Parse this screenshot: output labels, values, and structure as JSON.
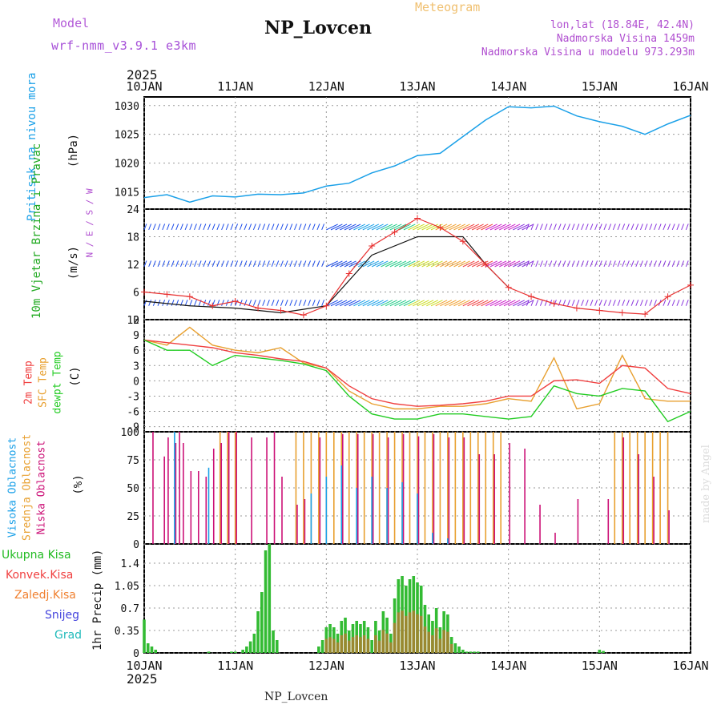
{
  "header": {
    "model_label": "Model",
    "model_name": "wrf-nmm_v3.9.1  e3km",
    "station": "NP_Lovcen",
    "chart_kind": "Meteogram",
    "lonlat": "lon,lat (18.84E, 42.4N)",
    "elevation": "Nadmorska Visina 1459m",
    "model_elevation": "Nadmorska Visina u modelu 973.293m",
    "year_top": "2025",
    "year_bottom": "2025",
    "footer_station": "NP_Lovcen",
    "made_by": "made by Angel"
  },
  "colors": {
    "pressure": "#1aa0e8",
    "temp2m": "#f04040",
    "sfc": "#e8a030",
    "dewpt": "#22cc22",
    "high_cloud": "#1aa0e8",
    "mid_cloud": "#e8a030",
    "low_cloud": "#cc1177",
    "total_precip": "#33bb33",
    "snow": "#4444dd",
    "grid": "#999999"
  },
  "x_axis": {
    "ticks": [
      "10JAN",
      "11JAN",
      "12JAN",
      "13JAN",
      "14JAN",
      "15JAN",
      "16JAN"
    ],
    "range_hours": [
      0,
      144
    ]
  },
  "chart_data": [
    {
      "id": "pressure",
      "type": "line",
      "title": "Pritisak na nivou mora",
      "ylabel": "(hPa)",
      "ylim": [
        1012,
        1031.5
      ],
      "yticks": [
        1015,
        1020,
        1025,
        1030
      ],
      "series": [
        {
          "name": "MSLP",
          "x": [
            0,
            6,
            12,
            18,
            24,
            30,
            36,
            42,
            48,
            54,
            60,
            66,
            72,
            78,
            84,
            90,
            96,
            102,
            108,
            114,
            120,
            126,
            132,
            138,
            144
          ],
          "values": [
            1014,
            1014.5,
            1013.2,
            1014.3,
            1014.1,
            1014.6,
            1014.5,
            1014.8,
            1016,
            1016.5,
            1018.3,
            1019.5,
            1021.3,
            1021.7,
            1024.6,
            1027.5,
            1029.8,
            1029.6,
            1029.9,
            1028.2,
            1027.2,
            1026.4,
            1025,
            1026.8,
            1028.3
          ]
        }
      ]
    },
    {
      "id": "wind",
      "type": "line",
      "title": "10m Vjetar Brzina i Pravac",
      "ylabel": "(m/s)",
      "compass": "N / E / S / W",
      "ylim": [
        0,
        24
      ],
      "yticks": [
        0,
        6,
        12,
        18,
        24
      ],
      "series": [
        {
          "name": "speed",
          "x": [
            0,
            6,
            12,
            18,
            24,
            30,
            36,
            42,
            48,
            54,
            60,
            66,
            72,
            78,
            84,
            90,
            96,
            102,
            108,
            114,
            120,
            126,
            132,
            138,
            144
          ],
          "values": [
            6,
            5.5,
            5,
            3,
            4,
            2.5,
            2,
            1,
            3,
            10,
            16,
            19,
            22,
            20,
            17,
            12,
            7,
            5,
            3.5,
            2.5,
            2,
            1.5,
            1.2,
            5,
            7.5
          ]
        },
        {
          "name": "gust_base",
          "x": [
            0,
            12,
            24,
            36,
            48,
            60,
            72,
            84,
            90,
            96
          ],
          "values": [
            4,
            3,
            2.5,
            1.5,
            3,
            14,
            18,
            18,
            12,
            7
          ]
        }
      ],
      "barb_levels": [
        3,
        11.5,
        19.5
      ]
    },
    {
      "id": "temperature",
      "type": "line",
      "title": "2m Temp / SFC Temp / dewpt Temp",
      "labels": [
        "2m Temp",
        "SFC Temp",
        "dewpt Temp"
      ],
      "ylabel": "(C)",
      "ylim": [
        -10,
        12
      ],
      "yticks": [
        -9,
        -6,
        -3,
        0,
        3,
        6,
        9,
        12
      ],
      "series": [
        {
          "name": "2m Temp",
          "x": [
            0,
            6,
            12,
            18,
            24,
            30,
            36,
            42,
            48,
            54,
            60,
            66,
            72,
            78,
            84,
            90,
            96,
            102,
            108,
            114,
            120,
            126,
            132,
            138,
            144
          ],
          "values": [
            8,
            7.5,
            7,
            6.5,
            5.5,
            5,
            4.3,
            3.8,
            2.5,
            -1,
            -3.5,
            -4.5,
            -5,
            -4.8,
            -4.5,
            -4,
            -3,
            -3,
            0,
            0.2,
            -0.5,
            3,
            2.5,
            -1.5,
            -2.5
          ]
        },
        {
          "name": "SFC Temp",
          "x": [
            0,
            6,
            12,
            18,
            24,
            30,
            36,
            42,
            48,
            54,
            60,
            66,
            72,
            78,
            84,
            90,
            96,
            102,
            108,
            114,
            120,
            126,
            132,
            138,
            144
          ],
          "values": [
            8,
            7,
            10.5,
            7,
            6,
            5.5,
            6.5,
            3.5,
            2.5,
            -2,
            -4.5,
            -5.5,
            -5.5,
            -5,
            -5,
            -4.5,
            -3.5,
            -4,
            4.5,
            -5.5,
            -4.5,
            5,
            -3.5,
            -4,
            -4
          ]
        },
        {
          "name": "dewpt Temp",
          "x": [
            0,
            6,
            12,
            18,
            24,
            30,
            36,
            42,
            48,
            54,
            60,
            66,
            72,
            78,
            84,
            90,
            96,
            102,
            108,
            114,
            120,
            126,
            132,
            138,
            144
          ],
          "values": [
            8,
            6,
            6,
            3,
            5,
            4.5,
            4,
            3.3,
            2,
            -3,
            -6.5,
            -7.5,
            -7.5,
            -6.5,
            -6.5,
            -7,
            -7.5,
            -7,
            -1,
            -2.5,
            -3,
            -1.5,
            -2,
            -8,
            -6
          ]
        }
      ]
    },
    {
      "id": "clouds",
      "type": "bar",
      "title": "Visoka Oblacnost / Srednja Oblacnost / Niska Oblacnost",
      "labels": [
        "Visoka Oblacnost",
        "Srednja Oblacnost",
        "Niska Oblacnost"
      ],
      "ylabel": "(%)",
      "ylim": [
        0,
        100
      ],
      "yticks": [
        0,
        25,
        50,
        75,
        100
      ],
      "series": [
        {
          "name": "Niska Oblacnost",
          "x": [
            2,
            5,
            6,
            8,
            9,
            10,
            12,
            14,
            16,
            18,
            20,
            22,
            24,
            28,
            32,
            34,
            36,
            40,
            42,
            46,
            52,
            56,
            60,
            64,
            68,
            72,
            76,
            80,
            84,
            88,
            92,
            96,
            100,
            104,
            108,
            114,
            122,
            126,
            130,
            134,
            138
          ],
          "values": [
            100,
            78,
            95,
            90,
            100,
            90,
            65,
            65,
            60,
            85,
            90,
            100,
            100,
            95,
            95,
            100,
            60,
            35,
            40,
            95,
            98,
            98,
            98,
            95,
            98,
            96,
            98,
            95,
            95,
            80,
            80,
            90,
            85,
            35,
            10,
            40,
            40,
            95,
            80,
            60,
            30
          ]
        },
        {
          "name": "Srednja Oblacnost",
          "x": [
            20,
            22,
            24,
            40,
            42,
            44,
            46,
            48,
            50,
            52,
            54,
            56,
            58,
            60,
            62,
            64,
            66,
            68,
            70,
            72,
            74,
            76,
            78,
            80,
            82,
            84,
            86,
            88,
            90,
            92,
            94,
            124,
            126,
            128,
            130,
            132,
            134,
            136,
            138
          ],
          "values": [
            100,
            100,
            100,
            100,
            100,
            100,
            100,
            100,
            100,
            100,
            100,
            100,
            100,
            100,
            100,
            100,
            100,
            100,
            100,
            100,
            100,
            100,
            100,
            100,
            100,
            100,
            100,
            100,
            100,
            100,
            100,
            100,
            100,
            100,
            100,
            100,
            100,
            100,
            100
          ]
        },
        {
          "name": "Visoka Oblacnost",
          "x": [
            8,
            17,
            44,
            48,
            52,
            56,
            60,
            64,
            68,
            72,
            76,
            80
          ],
          "values": [
            100,
            68,
            45,
            60,
            70,
            50,
            60,
            50,
            55,
            45,
            10,
            5
          ]
        }
      ]
    },
    {
      "id": "precip",
      "type": "bar",
      "title": "1hr Precip",
      "labels": [
        "Ukupna Kisa",
        "Konvek.Kisa",
        "Zaledj.Kisa",
        "Snijeg",
        "Grad"
      ],
      "ylabel": "1hr Precip (mm)",
      "ylim": [
        0,
        1.7
      ],
      "yticks": [
        "0",
        "0.35",
        "0.7",
        "1.05",
        "1.4"
      ],
      "series": [
        {
          "name": "Ukupna Kisa",
          "x": [
            0,
            1,
            2,
            3,
            17,
            23,
            24,
            26,
            27,
            28,
            29,
            30,
            31,
            32,
            33,
            34,
            35,
            46,
            47,
            48,
            49,
            50,
            51,
            52,
            53,
            54,
            55,
            56,
            57,
            58,
            59,
            60,
            61,
            62,
            63,
            64,
            65,
            66,
            67,
            68,
            69,
            70,
            71,
            72,
            73,
            74,
            75,
            76,
            77,
            78,
            79,
            80,
            81,
            82,
            83,
            84,
            85,
            86,
            87,
            88,
            120,
            121
          ],
          "values": [
            0.52,
            0.15,
            0.1,
            0.05,
            0.02,
            0.02,
            0.02,
            0.05,
            0.1,
            0.18,
            0.3,
            0.65,
            0.95,
            1.6,
            1.7,
            0.35,
            0.2,
            0.1,
            0.2,
            0.4,
            0.45,
            0.4,
            0.3,
            0.5,
            0.55,
            0.35,
            0.45,
            0.5,
            0.45,
            0.5,
            0.4,
            0.2,
            0.5,
            0.35,
            0.65,
            0.55,
            0.3,
            0.85,
            1.15,
            1.2,
            1.05,
            1.15,
            1.2,
            1.1,
            1.05,
            0.75,
            0.6,
            0.5,
            0.7,
            0.4,
            0.65,
            0.6,
            0.25,
            0.15,
            0.1,
            0.05,
            0.02,
            0.02,
            0.02,
            0.02,
            0.05,
            0.03
          ]
        }
      ]
    }
  ]
}
